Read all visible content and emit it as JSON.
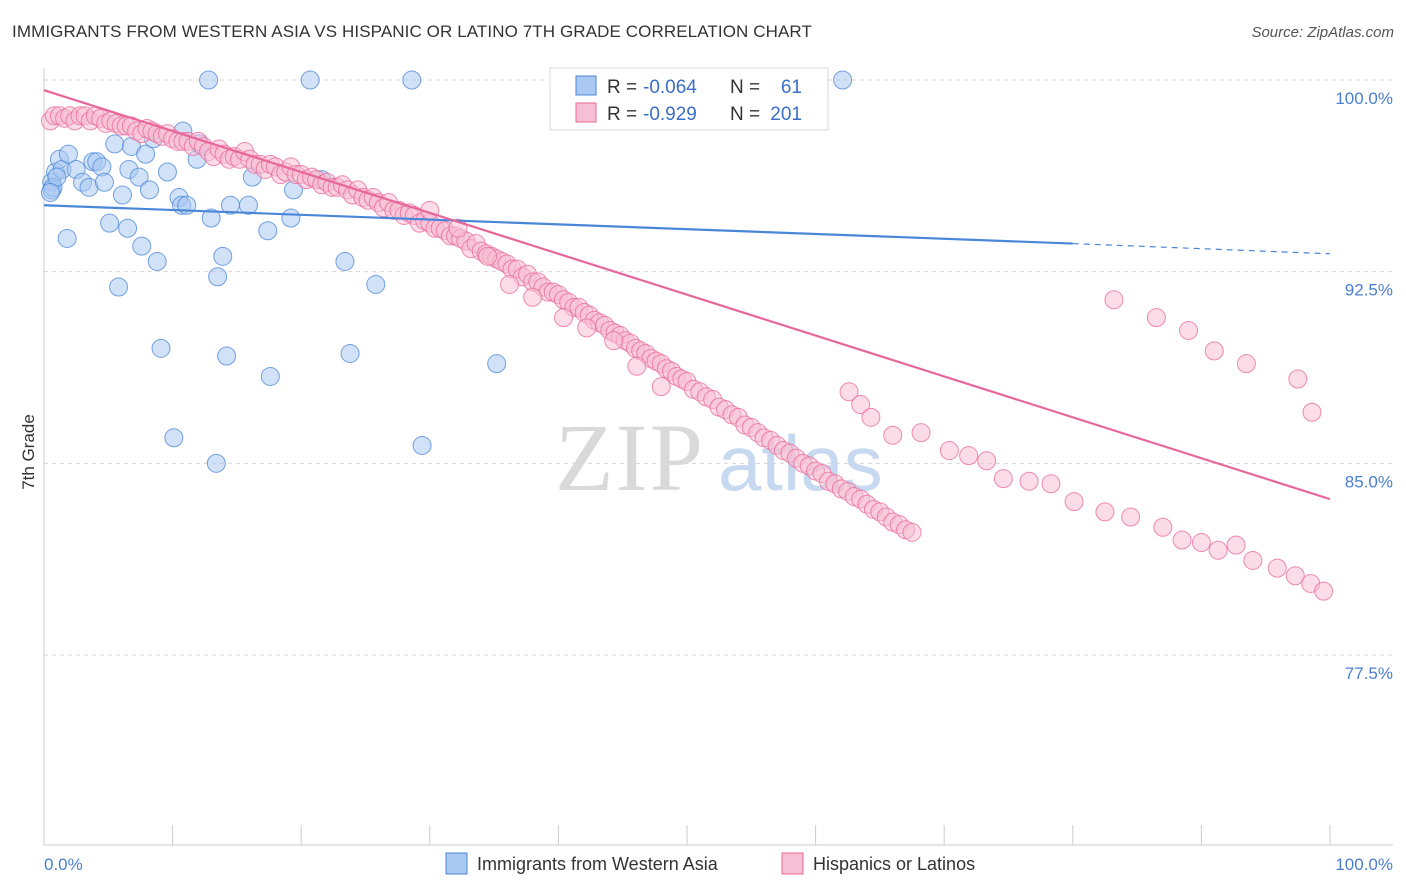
{
  "title": "IMMIGRANTS FROM WESTERN ASIA VS HISPANIC OR LATINO 7TH GRADE CORRELATION CHART",
  "source": "Source: ZipAtlas.com",
  "watermark": {
    "zip": "ZIP",
    "atlas": "atlas"
  },
  "colors": {
    "blue": "#4a86d8",
    "blue_fill": "#aac9f2",
    "pink": "#e8679a",
    "pink_fill": "#f7bfd3",
    "tick_text": "#4a7fd0",
    "grid": "#d5d5d5"
  },
  "legend_box": {
    "rows": [
      {
        "r_label": "R = ",
        "r_value": "-0.064",
        "n_label": "N = ",
        "n_value": "61"
      },
      {
        "r_label": "R = ",
        "r_value": "-0.929",
        "n_label": "N = ",
        "n_value": "201"
      }
    ]
  },
  "chart_data": {
    "type": "scatter",
    "title": "IMMIGRANTS FROM WESTERN ASIA VS HISPANIC OR LATINO 7TH GRADE CORRELATION CHART",
    "xlabel": "",
    "ylabel": "7th Grade",
    "xlim": [
      0,
      100
    ],
    "ylim": [
      70,
      101.5
    ],
    "x_tick_labels": [
      "0.0%",
      "100.0%"
    ],
    "y_ticks": [
      77.5,
      85.0,
      92.5,
      100.0
    ],
    "y_tick_labels": [
      "77.5%",
      "85.0%",
      "92.5%",
      "100.0%"
    ],
    "grid": "horizontal dashed",
    "legend": "bottom-center",
    "series": [
      {
        "name": "Immigrants from Western Asia",
        "color": "#4a86d8",
        "trend": {
          "x0": 0,
          "y0": 95.1,
          "x1": 80,
          "y1": 93.6,
          "dash_x1": 100,
          "dash_y1": 93.2
        },
        "points": [
          [
            0.6,
            96.0
          ],
          [
            0.6,
            95.7
          ],
          [
            0.9,
            96.4
          ],
          [
            1.2,
            96.9
          ],
          [
            1.4,
            96.5
          ],
          [
            1.8,
            93.8
          ],
          [
            1.9,
            97.1
          ],
          [
            2.5,
            96.5
          ],
          [
            3.0,
            96.0
          ],
          [
            3.5,
            95.8
          ],
          [
            3.8,
            96.8
          ],
          [
            4.1,
            96.8
          ],
          [
            4.5,
            96.6
          ],
          [
            4.7,
            96.0
          ],
          [
            5.1,
            94.4
          ],
          [
            5.5,
            97.5
          ],
          [
            5.8,
            91.9
          ],
          [
            6.1,
            95.5
          ],
          [
            6.5,
            94.2
          ],
          [
            6.6,
            96.5
          ],
          [
            6.8,
            97.4
          ],
          [
            7.4,
            96.2
          ],
          [
            7.6,
            93.5
          ],
          [
            7.9,
            97.1
          ],
          [
            8.2,
            95.7
          ],
          [
            8.5,
            97.7
          ],
          [
            8.8,
            92.9
          ],
          [
            9.1,
            89.5
          ],
          [
            9.6,
            96.4
          ],
          [
            10.1,
            86.0
          ],
          [
            10.5,
            95.4
          ],
          [
            10.7,
            95.1
          ],
          [
            10.8,
            98.0
          ],
          [
            11.1,
            95.1
          ],
          [
            11.9,
            96.9
          ],
          [
            12.1,
            97.5
          ],
          [
            12.8,
            100.0
          ],
          [
            13.0,
            94.6
          ],
          [
            13.5,
            92.3
          ],
          [
            13.9,
            93.1
          ],
          [
            14.2,
            89.2
          ],
          [
            14.5,
            95.1
          ],
          [
            13.4,
            85.0
          ],
          [
            15.9,
            95.1
          ],
          [
            16.2,
            96.2
          ],
          [
            17.4,
            94.1
          ],
          [
            17.6,
            88.4
          ],
          [
            19.2,
            94.6
          ],
          [
            19.4,
            95.7
          ],
          [
            20.7,
            100.0
          ],
          [
            21.6,
            96.1
          ],
          [
            23.4,
            92.9
          ],
          [
            23.8,
            89.3
          ],
          [
            25.8,
            92.0
          ],
          [
            28.6,
            100.0
          ],
          [
            29.4,
            85.7
          ],
          [
            35.2,
            88.9
          ],
          [
            62.1,
            100.0
          ],
          [
            0.7,
            95.8
          ],
          [
            1.0,
            96.2
          ],
          [
            0.5,
            95.6
          ]
        ]
      },
      {
        "name": "Hispanics or Latinos",
        "color": "#e8679a",
        "trend": {
          "x0": 0,
          "y0": 99.6,
          "x1": 100,
          "y1": 83.6
        },
        "points": [
          [
            0.5,
            98.4
          ],
          [
            0.8,
            98.6
          ],
          [
            1.2,
            98.6
          ],
          [
            1.6,
            98.5
          ],
          [
            2.0,
            98.6
          ],
          [
            2.4,
            98.4
          ],
          [
            2.8,
            98.6
          ],
          [
            3.2,
            98.6
          ],
          [
            3.6,
            98.4
          ],
          [
            4.0,
            98.6
          ],
          [
            4.4,
            98.5
          ],
          [
            4.8,
            98.3
          ],
          [
            5.2,
            98.4
          ],
          [
            5.6,
            98.3
          ],
          [
            6.0,
            98.2
          ],
          [
            6.4,
            98.2
          ],
          [
            6.8,
            98.2
          ],
          [
            7.2,
            98.0
          ],
          [
            7.6,
            97.9
          ],
          [
            8.0,
            98.1
          ],
          [
            8.4,
            98.0
          ],
          [
            8.8,
            97.9
          ],
          [
            9.2,
            97.8
          ],
          [
            9.6,
            97.9
          ],
          [
            10.0,
            97.7
          ],
          [
            10.4,
            97.6
          ],
          [
            10.8,
            97.6
          ],
          [
            11.2,
            97.6
          ],
          [
            11.6,
            97.4
          ],
          [
            12.0,
            97.6
          ],
          [
            12.4,
            97.4
          ],
          [
            12.8,
            97.2
          ],
          [
            13.2,
            97.0
          ],
          [
            13.6,
            97.3
          ],
          [
            14.0,
            97.1
          ],
          [
            14.4,
            96.9
          ],
          [
            14.8,
            97.0
          ],
          [
            15.2,
            96.9
          ],
          [
            15.6,
            97.2
          ],
          [
            16.0,
            96.9
          ],
          [
            16.4,
            96.7
          ],
          [
            16.8,
            96.7
          ],
          [
            17.2,
            96.5
          ],
          [
            17.6,
            96.7
          ],
          [
            18.0,
            96.6
          ],
          [
            18.4,
            96.3
          ],
          [
            18.8,
            96.4
          ],
          [
            19.2,
            96.6
          ],
          [
            19.6,
            96.3
          ],
          [
            20.0,
            96.3
          ],
          [
            20.4,
            96.1
          ],
          [
            20.8,
            96.2
          ],
          [
            21.2,
            96.1
          ],
          [
            21.6,
            95.9
          ],
          [
            22.0,
            96.0
          ],
          [
            22.4,
            95.8
          ],
          [
            22.8,
            95.8
          ],
          [
            23.2,
            95.9
          ],
          [
            23.6,
            95.7
          ],
          [
            24.0,
            95.5
          ],
          [
            24.4,
            95.7
          ],
          [
            24.8,
            95.4
          ],
          [
            25.2,
            95.3
          ],
          [
            25.6,
            95.4
          ],
          [
            26.0,
            95.2
          ],
          [
            26.4,
            95.0
          ],
          [
            26.8,
            95.2
          ],
          [
            27.2,
            94.9
          ],
          [
            27.6,
            94.9
          ],
          [
            28.0,
            94.7
          ],
          [
            28.4,
            94.8
          ],
          [
            28.8,
            94.7
          ],
          [
            29.2,
            94.4
          ],
          [
            29.6,
            94.5
          ],
          [
            30.0,
            94.4
          ],
          [
            30.4,
            94.2
          ],
          [
            30.8,
            94.2
          ],
          [
            31.2,
            94.1
          ],
          [
            31.6,
            93.9
          ],
          [
            32.0,
            93.9
          ],
          [
            32.4,
            93.8
          ],
          [
            32.8,
            93.7
          ],
          [
            33.2,
            93.4
          ],
          [
            33.6,
            93.6
          ],
          [
            34.0,
            93.3
          ],
          [
            34.4,
            93.2
          ],
          [
            34.8,
            93.1
          ],
          [
            35.2,
            93.0
          ],
          [
            35.6,
            92.9
          ],
          [
            36.0,
            92.8
          ],
          [
            36.4,
            92.6
          ],
          [
            36.8,
            92.6
          ],
          [
            37.2,
            92.3
          ],
          [
            37.6,
            92.4
          ],
          [
            38.0,
            92.1
          ],
          [
            38.4,
            92.1
          ],
          [
            38.8,
            91.9
          ],
          [
            39.2,
            91.7
          ],
          [
            39.6,
            91.7
          ],
          [
            40.0,
            91.6
          ],
          [
            40.4,
            91.4
          ],
          [
            40.8,
            91.3
          ],
          [
            41.2,
            91.1
          ],
          [
            41.6,
            91.1
          ],
          [
            42.0,
            90.9
          ],
          [
            42.4,
            90.8
          ],
          [
            42.8,
            90.6
          ],
          [
            43.2,
            90.5
          ],
          [
            43.6,
            90.4
          ],
          [
            44.0,
            90.2
          ],
          [
            44.4,
            90.1
          ],
          [
            44.8,
            90.0
          ],
          [
            45.2,
            89.8
          ],
          [
            45.6,
            89.7
          ],
          [
            46.0,
            89.5
          ],
          [
            46.4,
            89.4
          ],
          [
            46.8,
            89.3
          ],
          [
            47.2,
            89.1
          ],
          [
            47.6,
            89.0
          ],
          [
            48.0,
            88.9
          ],
          [
            48.4,
            88.7
          ],
          [
            48.8,
            88.6
          ],
          [
            49.2,
            88.4
          ],
          [
            49.6,
            88.3
          ],
          [
            50.0,
            88.2
          ],
          [
            50.5,
            87.9
          ],
          [
            51.0,
            87.8
          ],
          [
            51.5,
            87.6
          ],
          [
            52.0,
            87.5
          ],
          [
            52.5,
            87.2
          ],
          [
            53.0,
            87.1
          ],
          [
            53.5,
            86.9
          ],
          [
            54.0,
            86.8
          ],
          [
            54.5,
            86.5
          ],
          [
            55.0,
            86.4
          ],
          [
            55.5,
            86.2
          ],
          [
            56.0,
            86.0
          ],
          [
            56.5,
            85.9
          ],
          [
            57.0,
            85.7
          ],
          [
            57.5,
            85.5
          ],
          [
            58.0,
            85.4
          ],
          [
            58.5,
            85.2
          ],
          [
            59.0,
            85.0
          ],
          [
            59.5,
            84.9
          ],
          [
            60.0,
            84.7
          ],
          [
            60.5,
            84.6
          ],
          [
            61.0,
            84.3
          ],
          [
            61.5,
            84.2
          ],
          [
            62.0,
            84.0
          ],
          [
            62.5,
            83.9
          ],
          [
            63.0,
            83.7
          ],
          [
            63.5,
            83.6
          ],
          [
            64.0,
            83.4
          ],
          [
            64.5,
            83.2
          ],
          [
            65.0,
            83.1
          ],
          [
            65.5,
            82.9
          ],
          [
            66.0,
            82.7
          ],
          [
            66.5,
            82.6
          ],
          [
            67.0,
            82.4
          ],
          [
            67.5,
            82.3
          ],
          [
            30.0,
            94.9
          ],
          [
            32.2,
            94.2
          ],
          [
            34.5,
            93.1
          ],
          [
            36.2,
            92.0
          ],
          [
            38.0,
            91.5
          ],
          [
            40.4,
            90.7
          ],
          [
            42.2,
            90.3
          ],
          [
            44.3,
            89.8
          ],
          [
            46.1,
            88.8
          ],
          [
            48.0,
            88.0
          ],
          [
            62.6,
            87.8
          ],
          [
            63.5,
            87.3
          ],
          [
            64.3,
            86.8
          ],
          [
            66.0,
            86.1
          ],
          [
            68.2,
            86.2
          ],
          [
            70.4,
            85.5
          ],
          [
            71.9,
            85.3
          ],
          [
            73.3,
            85.1
          ],
          [
            74.6,
            84.4
          ],
          [
            76.6,
            84.3
          ],
          [
            78.3,
            84.2
          ],
          [
            80.1,
            83.5
          ],
          [
            82.5,
            83.1
          ],
          [
            84.5,
            82.9
          ],
          [
            87.0,
            82.5
          ],
          [
            88.5,
            82.0
          ],
          [
            90.0,
            81.9
          ],
          [
            91.3,
            81.6
          ],
          [
            92.7,
            81.8
          ],
          [
            94.0,
            81.2
          ],
          [
            95.9,
            80.9
          ],
          [
            97.3,
            80.6
          ],
          [
            98.5,
            80.3
          ],
          [
            99.5,
            80.0
          ],
          [
            83.2,
            91.4
          ],
          [
            86.5,
            90.7
          ],
          [
            89.0,
            90.2
          ],
          [
            91.0,
            89.4
          ],
          [
            93.5,
            88.9
          ],
          [
            97.5,
            88.3
          ],
          [
            98.6,
            87.0
          ]
        ]
      }
    ]
  },
  "bottom_legend": [
    {
      "label": "Immigrants from Western Asia"
    },
    {
      "label": "Hispanics or Latinos"
    }
  ]
}
